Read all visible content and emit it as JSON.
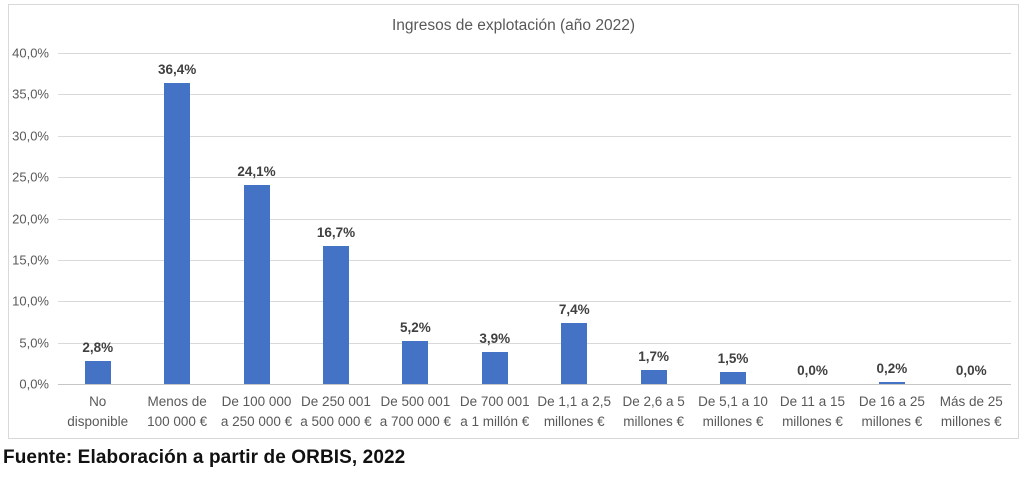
{
  "page": {
    "source_note": "Fuente: Elaboración a partir de ORBIS, 2022"
  },
  "chart_data": {
    "type": "bar",
    "title": "Ingresos de explotación (año 2022)",
    "categories": [
      "No disponible",
      "Menos de 100 000 €",
      "De 100 000 a 250 000 €",
      "De 250 001 a 500 000 €",
      "De 500 001 a 700 000 €",
      "De 700 001 a 1 millón €",
      "De 1,1 a 2,5 millones €",
      "De 2,6 a 5 millones €",
      "De 5,1 a 10 millones €",
      "De 11 a 15 millones €",
      "De 16 a 25 millones €",
      "Más de 25 millones €"
    ],
    "category_lines": [
      [
        "No",
        "disponible"
      ],
      [
        "Menos de",
        "100 000 €"
      ],
      [
        "De 100 000",
        "a 250 000 €"
      ],
      [
        "De 250 001",
        "a 500 000 €"
      ],
      [
        "De 500 001",
        "a 700 000 €"
      ],
      [
        "De 700 001",
        "a 1 millón €"
      ],
      [
        "De 1,1 a 2,5",
        "millones €"
      ],
      [
        "De 2,6 a 5",
        "millones €"
      ],
      [
        "De 5,1 a 10",
        "millones €"
      ],
      [
        "De 11 a 15",
        "millones €"
      ],
      [
        "De 16 a 25",
        "millones €"
      ],
      [
        "Más de 25",
        "millones €"
      ]
    ],
    "values": [
      2.8,
      36.4,
      24.1,
      16.7,
      5.2,
      3.9,
      7.4,
      1.7,
      1.5,
      0.0,
      0.2,
      0.0
    ],
    "value_labels": [
      "2,8%",
      "36,4%",
      "24,1%",
      "16,7%",
      "5,2%",
      "3,9%",
      "7,4%",
      "1,7%",
      "1,5%",
      "0,0%",
      "0,2%",
      "0,0%"
    ],
    "y_tick_values": [
      0,
      5,
      10,
      15,
      20,
      25,
      30,
      35,
      40
    ],
    "y_ticks": [
      "0,0%",
      "5,0%",
      "10,0%",
      "15,0%",
      "20,0%",
      "25,0%",
      "30,0%",
      "35,0%",
      "40,0%"
    ],
    "ylim": [
      0,
      40
    ],
    "xlabel": "",
    "ylabel": "",
    "grid": true,
    "legend": "none",
    "colors": {
      "bar": "#4472C4",
      "gridline": "#D9D9D9",
      "axis_text": "#595959",
      "data_label": "#404040",
      "title": "#595959",
      "frame_border": "#D9D9D9"
    }
  }
}
